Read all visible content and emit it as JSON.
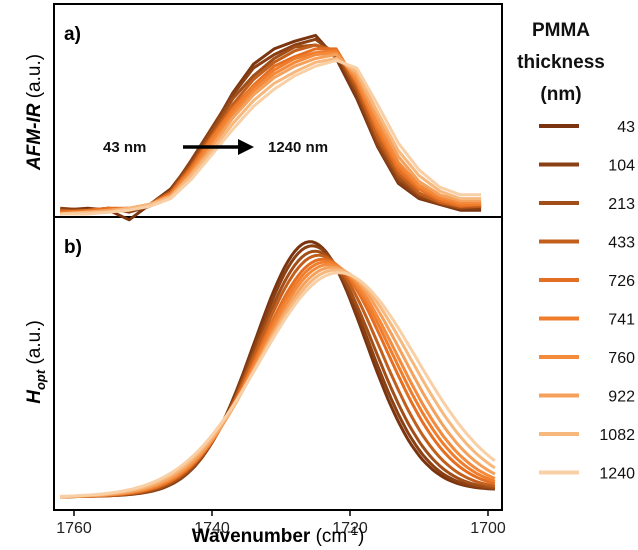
{
  "chart_data": [
    {
      "type": "line",
      "panel_label": "a)",
      "ylabel_italic": "AFM-IR",
      "ylabel_suffix": " (a.u.)",
      "xlim": [
        1760,
        1700
      ],
      "ylim": [
        0,
        1
      ],
      "annotation": {
        "from": "43 nm",
        "to": "1240 nm"
      },
      "x": [
        1762,
        1758,
        1755,
        1752,
        1749,
        1746,
        1743,
        1740,
        1737,
        1734,
        1731,
        1728,
        1725,
        1722,
        1719,
        1716,
        1713,
        1710,
        1707,
        1704,
        1701
      ],
      "series": [
        {
          "name": "43",
          "color": "#7a3510",
          "values": [
            0.02,
            0.03,
            0.02,
            -0.03,
            0.05,
            0.13,
            0.27,
            0.44,
            0.63,
            0.78,
            0.86,
            0.9,
            0.93,
            0.81,
            0.6,
            0.35,
            0.16,
            0.08,
            0.05,
            0.02,
            0.02
          ]
        },
        {
          "name": "104",
          "color": "#8b4014",
          "values": [
            0.03,
            0.02,
            0.03,
            0.01,
            0.04,
            0.12,
            0.28,
            0.45,
            0.62,
            0.76,
            0.83,
            0.88,
            0.91,
            0.83,
            0.62,
            0.36,
            0.17,
            0.09,
            0.05,
            0.03,
            0.03
          ]
        },
        {
          "name": "213",
          "color": "#a24e18",
          "values": [
            0.01,
            0.02,
            0.03,
            0.02,
            0.05,
            0.12,
            0.26,
            0.43,
            0.6,
            0.72,
            0.81,
            0.87,
            0.88,
            0.84,
            0.64,
            0.38,
            0.19,
            0.1,
            0.06,
            0.03,
            0.04
          ]
        },
        {
          "name": "433",
          "color": "#c25f1c",
          "values": [
            0.02,
            0.01,
            0.02,
            0.03,
            0.05,
            0.11,
            0.25,
            0.41,
            0.57,
            0.7,
            0.79,
            0.85,
            0.88,
            0.85,
            0.66,
            0.4,
            0.21,
            0.11,
            0.06,
            0.04,
            0.04
          ]
        },
        {
          "name": "726",
          "color": "#e46f22",
          "values": [
            0.01,
            0.02,
            0.03,
            0.03,
            0.05,
            0.11,
            0.24,
            0.4,
            0.55,
            0.67,
            0.77,
            0.82,
            0.86,
            0.86,
            0.68,
            0.43,
            0.23,
            0.13,
            0.07,
            0.04,
            0.05
          ]
        },
        {
          "name": "741",
          "color": "#f07d2c",
          "values": [
            0.01,
            0.01,
            0.02,
            0.03,
            0.05,
            0.1,
            0.23,
            0.39,
            0.54,
            0.66,
            0.75,
            0.81,
            0.84,
            0.85,
            0.69,
            0.45,
            0.25,
            0.14,
            0.08,
            0.05,
            0.05
          ]
        },
        {
          "name": "760",
          "color": "#f38a3c",
          "values": [
            0.0,
            0.01,
            0.02,
            0.03,
            0.05,
            0.1,
            0.22,
            0.37,
            0.52,
            0.64,
            0.73,
            0.79,
            0.83,
            0.84,
            0.7,
            0.47,
            0.27,
            0.15,
            0.09,
            0.06,
            0.06
          ]
        },
        {
          "name": "922",
          "color": "#f5a15c",
          "values": [
            0.0,
            0.01,
            0.02,
            0.03,
            0.05,
            0.09,
            0.21,
            0.35,
            0.5,
            0.62,
            0.71,
            0.77,
            0.81,
            0.83,
            0.72,
            0.5,
            0.3,
            0.17,
            0.1,
            0.07,
            0.07
          ]
        },
        {
          "name": "1082",
          "color": "#f7b87e",
          "values": [
            0.0,
            0.01,
            0.01,
            0.03,
            0.05,
            0.09,
            0.2,
            0.33,
            0.47,
            0.59,
            0.68,
            0.74,
            0.79,
            0.81,
            0.74,
            0.53,
            0.33,
            0.2,
            0.12,
            0.08,
            0.08
          ]
        },
        {
          "name": "1240",
          "color": "#f9cfa6",
          "values": [
            0.0,
            0.0,
            0.01,
            0.02,
            0.04,
            0.08,
            0.18,
            0.31,
            0.44,
            0.56,
            0.65,
            0.72,
            0.77,
            0.8,
            0.76,
            0.57,
            0.37,
            0.23,
            0.14,
            0.1,
            0.1
          ]
        }
      ]
    },
    {
      "type": "line",
      "panel_label": "b)",
      "ylabel_main": "H",
      "ylabel_sub": "opt",
      "ylabel_suffix": " (a.u.)",
      "xlabel_main": "Wavenumber",
      "xlabel_unit": " (cm",
      "xlabel_sup": "-1",
      "xlabel_close": ")",
      "xlim": [
        1760,
        1700
      ],
      "ylim": [
        0,
        1
      ],
      "xticks": [
        1760,
        1740,
        1720,
        1700
      ],
      "peaks": [
        {
          "name": "43",
          "center": 1725.8,
          "height": 0.92,
          "width": 8.0
        },
        {
          "name": "104",
          "center": 1725.5,
          "height": 0.905,
          "width": 8.2
        },
        {
          "name": "213",
          "center": 1725.1,
          "height": 0.885,
          "width": 8.5
        },
        {
          "name": "433",
          "center": 1724.6,
          "height": 0.87,
          "width": 8.9
        },
        {
          "name": "726",
          "center": 1724.0,
          "height": 0.855,
          "width": 9.3
        },
        {
          "name": "741",
          "center": 1723.6,
          "height": 0.845,
          "width": 9.6
        },
        {
          "name": "760",
          "center": 1723.2,
          "height": 0.835,
          "width": 9.9
        },
        {
          "name": "922",
          "center": 1722.7,
          "height": 0.825,
          "width": 10.3
        },
        {
          "name": "1082",
          "center": 1722.2,
          "height": 0.815,
          "width": 10.8
        },
        {
          "name": "1240",
          "center": 1721.7,
          "height": 0.805,
          "width": 11.3
        }
      ]
    }
  ],
  "legend": {
    "title_lines": [
      "PMMA",
      "thickness",
      "(nm)"
    ],
    "items": [
      {
        "label": "43",
        "color": "#7a3510"
      },
      {
        "label": "104",
        "color": "#8b4014"
      },
      {
        "label": "213",
        "color": "#a24e18"
      },
      {
        "label": "433",
        "color": "#c25f1c"
      },
      {
        "label": "726",
        "color": "#e46f22"
      },
      {
        "label": "741",
        "color": "#f07d2c"
      },
      {
        "label": "760",
        "color": "#f38a3c"
      },
      {
        "label": "922",
        "color": "#f5a15c"
      },
      {
        "label": "1082",
        "color": "#f7b87e"
      },
      {
        "label": "1240",
        "color": "#f9cfa6"
      }
    ]
  }
}
